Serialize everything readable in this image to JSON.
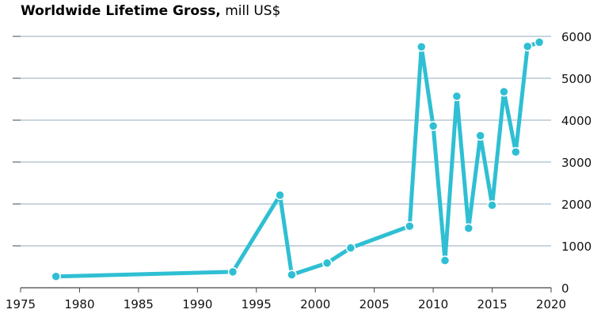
{
  "chart_data": {
    "type": "line",
    "title": "Worldwide Lifetime Gross,",
    "subtitle": "mill US$",
    "xlabel": "",
    "ylabel": "",
    "xlim": [
      1975,
      2020
    ],
    "ylim": [
      0,
      6000
    ],
    "grid": true,
    "y_axis_side": "right",
    "x_ticks": [
      1975,
      1980,
      1985,
      1990,
      1995,
      2000,
      2005,
      2010,
      2015,
      2020
    ],
    "y_ticks": [
      0,
      1000,
      2000,
      3000,
      4000,
      5000,
      6000
    ],
    "series": [
      {
        "color": "#2fbfd3",
        "x": [
          1978,
          1993,
          1997,
          1998,
          2001,
          2003,
          2008,
          2009,
          2010,
          2011,
          2012,
          2013,
          2014,
          2015,
          2016,
          2017,
          2018,
          2019
        ],
        "y": [
          270,
          380,
          2210,
          310,
          590,
          950,
          1470,
          5750,
          3860,
          650,
          4570,
          1420,
          3630,
          1970,
          4680,
          3240,
          5760,
          5860
        ]
      }
    ]
  },
  "colors": {
    "grid": "#a9bccb",
    "axis": "#444444",
    "line": "#2fbfd3",
    "marker_edge": "#ffffff"
  }
}
